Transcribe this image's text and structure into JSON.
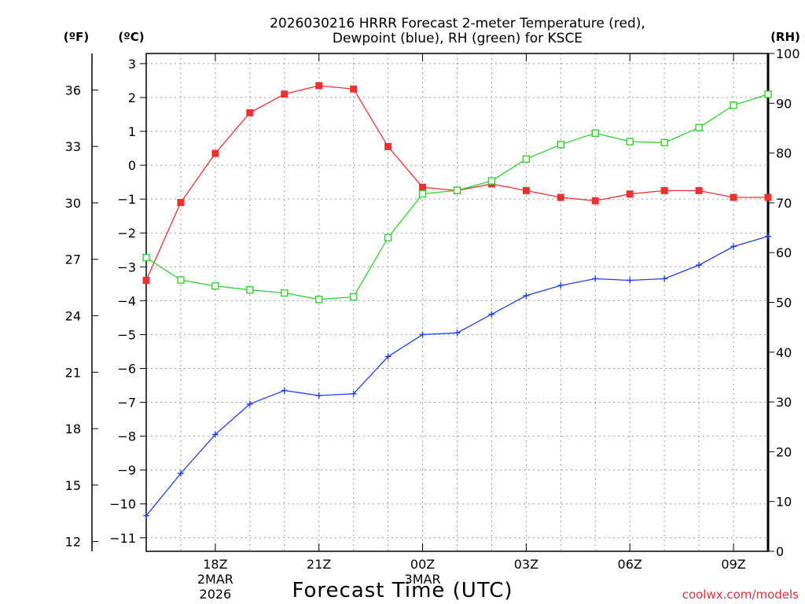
{
  "chart_data": {
    "type": "line",
    "title_lines": [
      "2026030216 HRRR Forecast 2-meter Temperature (red),",
      "Dewpoint (blue), RH (green) for KSCE"
    ],
    "xlabel": "Forecast Time (UTC)",
    "credit": "coolwx.com/models",
    "units": {
      "left_f": "(ºF)",
      "left_c": "(ºC)",
      "right_rh": "(RH)"
    },
    "x_range_hours": [
      0,
      18
    ],
    "x_ticks": [
      {
        "hour": 2,
        "label": "18Z",
        "sub": [
          "2MAR",
          "2026"
        ]
      },
      {
        "hour": 5,
        "label": "21Z",
        "sub": []
      },
      {
        "hour": 8,
        "label": "00Z",
        "sub": [
          "3MAR"
        ]
      },
      {
        "hour": 11,
        "label": "03Z",
        "sub": []
      },
      {
        "hour": 14,
        "label": "06Z",
        "sub": []
      },
      {
        "hour": 17,
        "label": "09Z",
        "sub": []
      }
    ],
    "celsius_axis": {
      "range": [
        -11.4,
        3.3
      ],
      "ticks": [
        3,
        2,
        1,
        0,
        -1,
        -2,
        -3,
        -4,
        -5,
        -6,
        -7,
        -8,
        -9,
        -10,
        -11
      ],
      "labels": [
        "3",
        "2",
        "1",
        "0",
        "−1",
        "−2",
        "−3",
        "−4",
        "−5",
        "−6",
        "−7",
        "−8",
        "−9",
        "−10",
        "−11"
      ]
    },
    "fahrenheit_axis": {
      "ticks": [
        36,
        33,
        30,
        27,
        24,
        21,
        18,
        15,
        12
      ]
    },
    "rh_axis": {
      "range": [
        0,
        100
      ],
      "ticks": [
        100,
        90,
        80,
        70,
        60,
        50,
        40,
        30,
        20,
        10,
        0
      ]
    },
    "series": [
      {
        "name": "Temperature",
        "unit": "C",
        "color": "#f03030",
        "marker": "filled-square",
        "values": [
          -3.4,
          -1.1,
          0.35,
          1.55,
          2.1,
          2.35,
          2.25,
          0.55,
          -0.65,
          -0.75,
          -0.55,
          -0.75,
          -0.95,
          -1.05,
          -0.85,
          -0.75,
          -0.75,
          -0.95,
          -0.95
        ]
      },
      {
        "name": "Dewpoint",
        "unit": "C",
        "color": "#2040f0",
        "marker": "plus",
        "values": [
          -10.35,
          -9.1,
          -7.95,
          -7.05,
          -6.65,
          -6.8,
          -6.75,
          -5.65,
          -5.0,
          -4.95,
          -4.4,
          -3.85,
          -3.55,
          -3.35,
          -3.4,
          -3.35,
          -2.95,
          -2.4,
          -2.1
        ]
      },
      {
        "name": "RH",
        "unit": "%",
        "color": "#30d030",
        "marker": "open-square",
        "values": [
          59.0,
          54.5,
          53.3,
          52.5,
          51.9,
          50.6,
          51.1,
          63.0,
          71.8,
          72.5,
          74.4,
          78.8,
          81.7,
          84.0,
          82.3,
          82.1,
          85.1,
          89.6,
          91.8
        ]
      }
    ]
  }
}
